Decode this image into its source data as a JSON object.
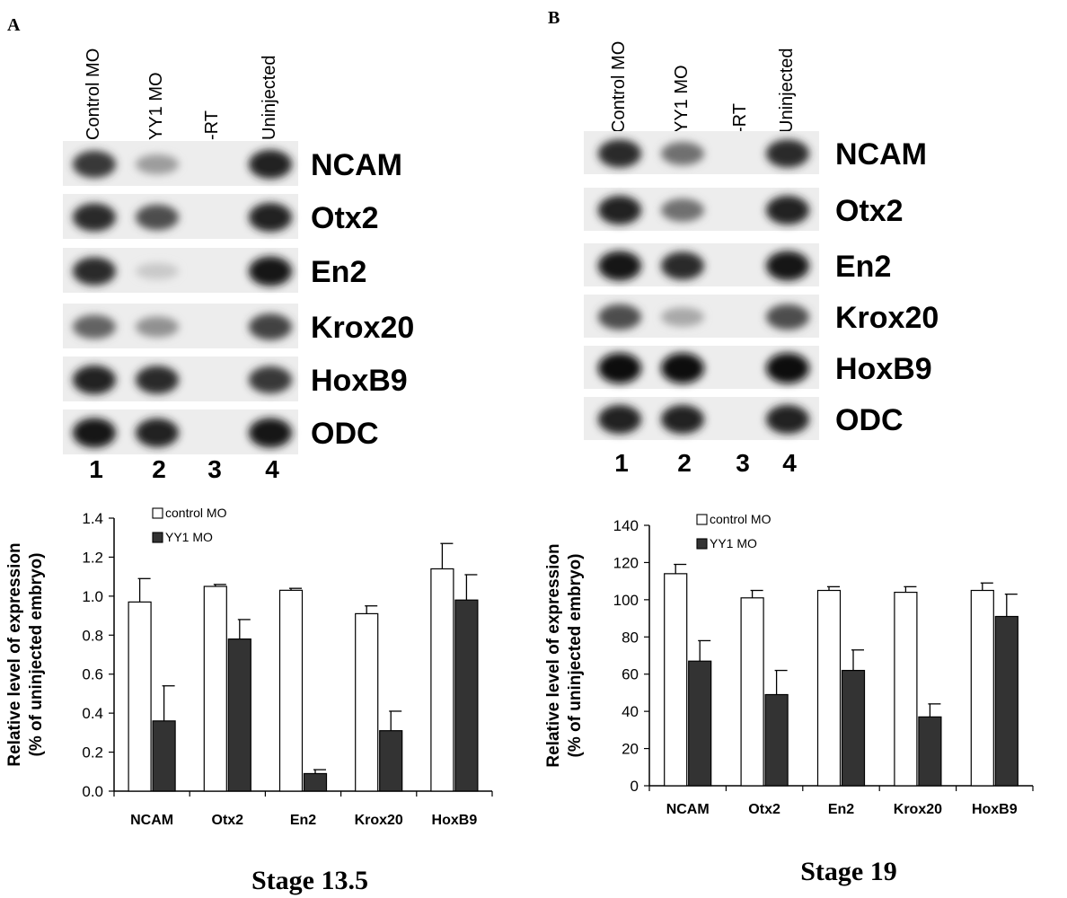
{
  "panels": [
    {
      "letter": "A",
      "lanes": [
        "Control MO",
        "YY1 MO",
        "-RT",
        "Uninjected"
      ],
      "lane_numbers": [
        "1",
        "2",
        "3",
        "4"
      ],
      "genes": [
        "NCAM",
        "Otx2",
        "En2",
        "Krox20",
        "HoxB9",
        "ODC"
      ],
      "band_intensity": [
        [
          0.8,
          0.35,
          0,
          0.9
        ],
        [
          0.85,
          0.7,
          0,
          0.9
        ],
        [
          0.85,
          0.15,
          0,
          0.95
        ],
        [
          0.6,
          0.4,
          0,
          0.75
        ],
        [
          0.9,
          0.85,
          0,
          0.8
        ],
        [
          0.95,
          0.9,
          0,
          0.95
        ]
      ],
      "stage_title": "Stage 13.5"
    },
    {
      "letter": "B",
      "lanes": [
        "Control MO",
        "YY1 MO",
        "-RT",
        "Uninjected"
      ],
      "lane_numbers": [
        "1",
        "2",
        "3",
        "4"
      ],
      "genes": [
        "NCAM",
        "Otx2",
        "En2",
        "Krox20",
        "HoxB9",
        "ODC"
      ],
      "band_intensity": [
        [
          0.85,
          0.55,
          0,
          0.85
        ],
        [
          0.9,
          0.55,
          0,
          0.9
        ],
        [
          0.95,
          0.85,
          0,
          0.95
        ],
        [
          0.7,
          0.3,
          0,
          0.7
        ],
        [
          1.0,
          1.0,
          0,
          1.0
        ],
        [
          0.9,
          0.9,
          0,
          0.9
        ]
      ],
      "stage_title": "Stage 19"
    }
  ],
  "chart_data": [
    {
      "type": "bar",
      "categories": [
        "NCAM",
        "Otx2",
        "En2",
        "Krox20",
        "HoxB9"
      ],
      "series": [
        {
          "name": "control MO",
          "values": [
            0.97,
            1.05,
            1.03,
            0.91,
            1.14
          ],
          "errors": [
            0.12,
            0.01,
            0.01,
            0.04,
            0.13
          ],
          "color": "#ffffff"
        },
        {
          "name": "YY1 MO",
          "values": [
            0.36,
            0.78,
            0.09,
            0.31,
            0.98
          ],
          "errors": [
            0.18,
            0.1,
            0.02,
            0.1,
            0.13
          ],
          "color": "#333333"
        }
      ],
      "ylabel_lines": [
        "Relative level of expression",
        "(% of uninjected embryo)"
      ],
      "ylim": [
        0,
        1.4
      ],
      "yticks": [
        "0.0",
        "0.2",
        "0.4",
        "0.6",
        "0.8",
        "1.0",
        "1.2",
        "1.4"
      ],
      "legend": "top",
      "grid": false
    },
    {
      "type": "bar",
      "categories": [
        "NCAM",
        "Otx2",
        "En2",
        "Krox20",
        "HoxB9"
      ],
      "series": [
        {
          "name": "control MO",
          "values": [
            114,
            101,
            105,
            104,
            105
          ],
          "errors": [
            5,
            4,
            2,
            3,
            4
          ],
          "color": "#ffffff"
        },
        {
          "name": "YY1 MO",
          "values": [
            67,
            49,
            62,
            37,
            91
          ],
          "errors": [
            11,
            13,
            11,
            7,
            12
          ],
          "color": "#333333"
        }
      ],
      "ylabel_lines": [
        "Relative level of expression",
        "(% of uninjected embryo)"
      ],
      "ylim": [
        0,
        140
      ],
      "yticks": [
        "0",
        "20",
        "40",
        "60",
        "80",
        "100",
        "120",
        "140"
      ],
      "legend": "top",
      "grid": false
    }
  ]
}
